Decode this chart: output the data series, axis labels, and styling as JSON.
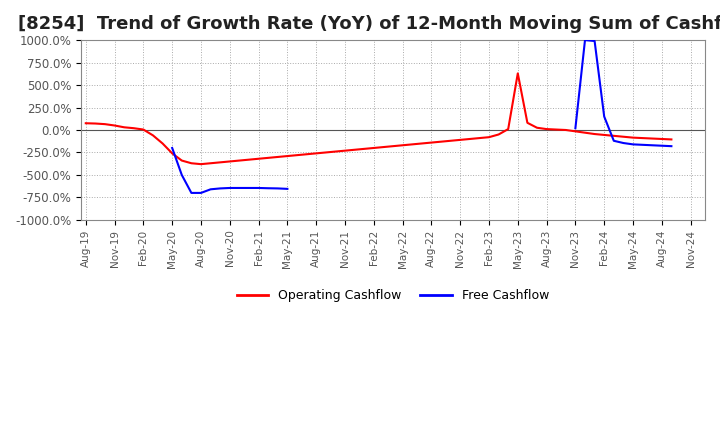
{
  "title": "[8254]  Trend of Growth Rate (YoY) of 12-Month Moving Sum of Cashflows",
  "ylim": [
    -1000,
    1000
  ],
  "yticks": [
    -1000,
    -750,
    -500,
    -250,
    0,
    250,
    500,
    750,
    1000
  ],
  "ytick_labels": [
    "-1000.0%",
    "-750.0%",
    "-500.0%",
    "-250.0%",
    "0.0%",
    "250.0%",
    "500.0%",
    "750.0%",
    "1000.0%"
  ],
  "background_color": "#ffffff",
  "plot_bg_color": "#ffffff",
  "grid_color": "#aaaaaa",
  "title_fontsize": 13,
  "legend_labels": [
    "Operating Cashflow",
    "Free Cashflow"
  ],
  "legend_colors": [
    "#ff0000",
    "#0000ff"
  ],
  "op_x": [
    0,
    1,
    2,
    3,
    4,
    5,
    6,
    7,
    8,
    9,
    10,
    11,
    12,
    13,
    14,
    15,
    16,
    17,
    18,
    19,
    20,
    21,
    22,
    23,
    24,
    25,
    26,
    27,
    28,
    29,
    30,
    31,
    32,
    33,
    34,
    35,
    36,
    37,
    38,
    39,
    40,
    41,
    42,
    43,
    44,
    45,
    46,
    47,
    48,
    49,
    50,
    51,
    52,
    53,
    54,
    55,
    56,
    57,
    58,
    59,
    60,
    61
  ],
  "op_y": [
    75,
    72,
    65,
    50,
    30,
    20,
    5,
    -60,
    -150,
    -260,
    -340,
    -370,
    -380,
    -370,
    -360,
    -350,
    -340,
    -330,
    -320,
    -310,
    -300,
    -290,
    -280,
    -270,
    -260,
    -250,
    -240,
    -230,
    -220,
    -210,
    -200,
    -190,
    -180,
    -170,
    -160,
    -150,
    -140,
    -130,
    -120,
    -110,
    -100,
    -90,
    -80,
    -50,
    10,
    630,
    80,
    25,
    10,
    5,
    0,
    -15,
    -30,
    -45,
    -55,
    -65,
    -75,
    -85,
    -90,
    -95,
    -100,
    -105
  ],
  "free_x_seg1": [
    9,
    10,
    11,
    12,
    13,
    14,
    15,
    16,
    17,
    18,
    19,
    20,
    21
  ],
  "free_y_seg1": [
    -200,
    -500,
    -700,
    -700,
    -660,
    -650,
    -645,
    -645,
    -645,
    -645,
    -648,
    -650,
    -655
  ],
  "free_x_seg2": [
    51,
    52,
    53,
    54,
    55,
    56,
    57,
    58,
    59,
    60,
    61
  ],
  "free_y_seg2": [
    20,
    1000,
    990,
    150,
    -120,
    -145,
    -160,
    -165,
    -170,
    -175,
    -180
  ],
  "x_tick_positions": [
    0,
    3,
    6,
    9,
    12,
    15,
    18,
    21,
    24,
    27,
    30,
    33,
    36,
    39,
    42,
    45,
    48,
    51,
    54,
    57,
    60,
    63
  ],
  "x_tick_labels": [
    "Aug-19",
    "Nov-19",
    "Feb-20",
    "May-20",
    "Aug-20",
    "Nov-20",
    "Feb-21",
    "May-21",
    "Aug-21",
    "Nov-21",
    "Feb-22",
    "May-22",
    "Aug-22",
    "Nov-22",
    "Feb-23",
    "May-23",
    "Aug-23",
    "Nov-23",
    "Feb-24",
    "May-24",
    "Aug-24",
    "Nov-24"
  ]
}
